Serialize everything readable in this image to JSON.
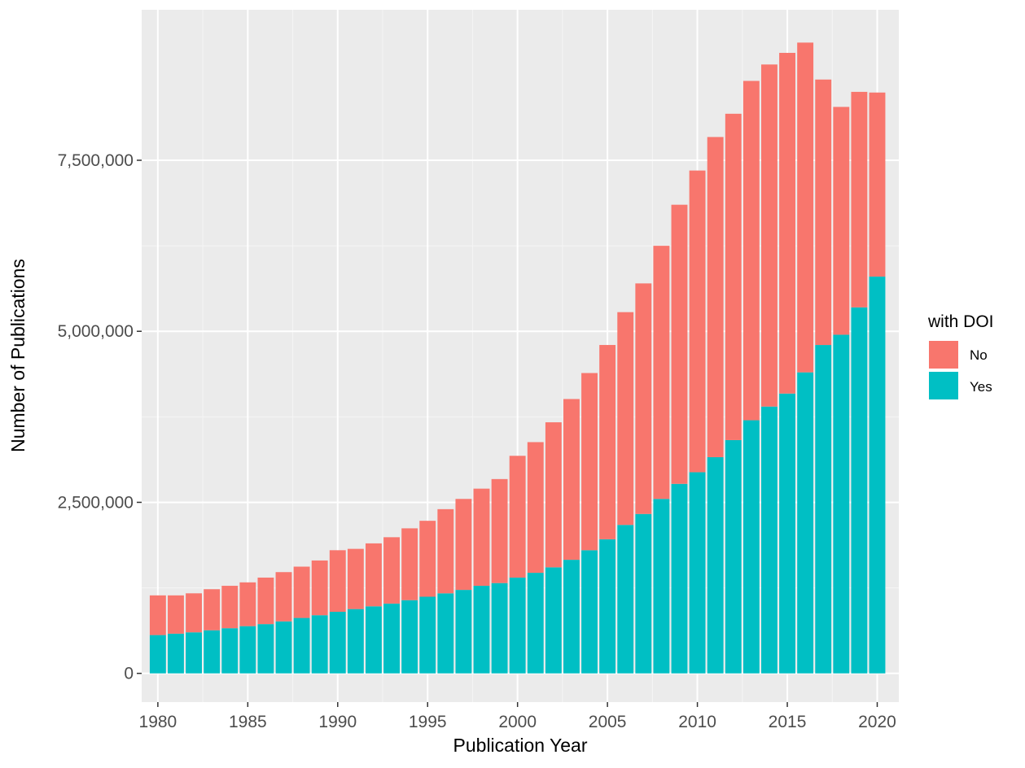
{
  "chart_data": {
    "type": "bar",
    "stacked": true,
    "title": "",
    "xlabel": "Publication Year",
    "ylabel": "Number of Publications",
    "x": [
      1980,
      1981,
      1982,
      1983,
      1984,
      1985,
      1986,
      1987,
      1988,
      1989,
      1990,
      1991,
      1992,
      1993,
      1994,
      1995,
      1996,
      1997,
      1998,
      1999,
      2000,
      2001,
      2002,
      2003,
      2004,
      2005,
      2006,
      2007,
      2008,
      2009,
      2010,
      2011,
      2012,
      2013,
      2014,
      2015,
      2016,
      2017,
      2018,
      2019,
      2020
    ],
    "xticks": [
      1980,
      1985,
      1990,
      1995,
      2000,
      2005,
      2010,
      2015,
      2020
    ],
    "yticks": [
      0,
      2500000,
      5000000,
      7500000
    ],
    "ytick_labels": [
      "0",
      "2,500,000",
      "5,000,000",
      "7,500,000"
    ],
    "xlim": [
      1979.1,
      2021.2
    ],
    "ylim": [
      -420000,
      9700000
    ],
    "grid": true,
    "legend": {
      "title": "with DOI",
      "position": "right"
    },
    "series": [
      {
        "name": "Yes",
        "color": "#00BFC4",
        "values": [
          560000,
          580000,
          600000,
          630000,
          660000,
          690000,
          720000,
          760000,
          810000,
          850000,
          900000,
          940000,
          980000,
          1020000,
          1070000,
          1120000,
          1170000,
          1220000,
          1280000,
          1320000,
          1400000,
          1470000,
          1550000,
          1660000,
          1800000,
          1960000,
          2170000,
          2330000,
          2550000,
          2770000,
          2940000,
          3160000,
          3410000,
          3700000,
          3900000,
          4090000,
          4400000,
          4800000,
          4950000,
          5350000,
          5800000
        ]
      },
      {
        "name": "No",
        "color": "#F8766D",
        "values": [
          580000,
          560000,
          570000,
          600000,
          620000,
          640000,
          680000,
          720000,
          750000,
          800000,
          900000,
          880000,
          920000,
          970000,
          1050000,
          1110000,
          1230000,
          1330000,
          1420000,
          1520000,
          1780000,
          1910000,
          2120000,
          2350000,
          2590000,
          2840000,
          3110000,
          3370000,
          3700000,
          4080000,
          4410000,
          4680000,
          4770000,
          4960000,
          5000000,
          4980000,
          4820000,
          3880000,
          3330000,
          3150000,
          2690000
        ]
      }
    ]
  }
}
